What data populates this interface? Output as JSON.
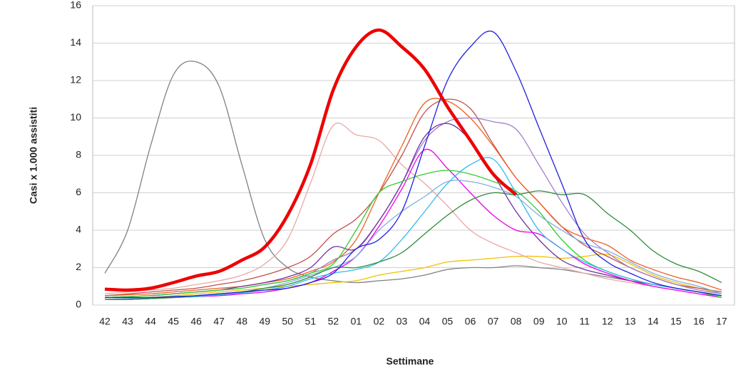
{
  "chart_data": {
    "type": "line",
    "xlabel": "Settimane",
    "ylabel": "Casi x 1.000 assistiti",
    "categories": [
      "42",
      "43",
      "44",
      "45",
      "46",
      "47",
      "48",
      "49",
      "50",
      "51",
      "52",
      "01",
      "02",
      "03",
      "04",
      "05",
      "06",
      "07",
      "08",
      "09",
      "10",
      "11",
      "12",
      "13",
      "14",
      "15",
      "16",
      "17"
    ],
    "ylim": [
      0,
      16
    ],
    "yticks": [
      0,
      2,
      4,
      6,
      8,
      10,
      12,
      14,
      16
    ],
    "grid": true,
    "series": [
      {
        "color": "#808080",
        "values": [
          1.7,
          4.0,
          8.5,
          12.3,
          13.0,
          11.7,
          7.5,
          3.5,
          2.0,
          1.5,
          1.3,
          1.2,
          1.3,
          1.4,
          1.6,
          1.9,
          2.0,
          2.0,
          2.1,
          2.0,
          1.9,
          1.7,
          1.5,
          1.3,
          1.1,
          0.9,
          0.7,
          0.5
        ]
      },
      {
        "color": "#f0c000",
        "values": [
          0.3,
          0.35,
          0.4,
          0.5,
          0.6,
          0.7,
          0.8,
          0.9,
          1.0,
          1.1,
          1.2,
          1.3,
          1.6,
          1.8,
          2.0,
          2.3,
          2.4,
          2.5,
          2.6,
          2.6,
          2.5,
          2.6,
          2.7,
          2.2,
          1.6,
          1.2,
          0.9,
          0.6
        ]
      },
      {
        "color": "#e8a8a8",
        "values": [
          0.6,
          0.7,
          0.8,
          0.9,
          1.1,
          1.3,
          1.6,
          2.2,
          3.5,
          6.5,
          9.6,
          9.1,
          8.8,
          7.5,
          6.5,
          5.3,
          4.0,
          3.3,
          2.8,
          2.3,
          2.0,
          1.7,
          1.4,
          1.2,
          1.0,
          0.8,
          0.6,
          0.5
        ]
      },
      {
        "color": "#c0504d",
        "values": [
          0.5,
          0.6,
          0.7,
          0.8,
          0.9,
          1.1,
          1.3,
          1.6,
          2.0,
          2.6,
          3.8,
          4.6,
          6.0,
          8.0,
          10.3,
          11.0,
          10.5,
          8.6,
          6.8,
          5.5,
          4.2,
          3.2,
          2.6,
          2.0,
          1.5,
          1.1,
          0.9,
          0.7
        ]
      },
      {
        "color": "#f06020",
        "values": [
          0.5,
          0.55,
          0.6,
          0.7,
          0.8,
          0.9,
          1.0,
          1.2,
          1.4,
          1.8,
          2.3,
          3.5,
          6.0,
          8.5,
          10.8,
          10.9,
          10.0,
          8.5,
          6.8,
          5.5,
          4.2,
          3.6,
          3.2,
          2.4,
          1.9,
          1.5,
          1.2,
          0.8
        ]
      },
      {
        "color": "#a080c8",
        "values": [
          0.4,
          0.45,
          0.5,
          0.6,
          0.7,
          0.8,
          0.9,
          1.1,
          1.3,
          1.7,
          2.4,
          3.0,
          4.5,
          6.5,
          8.8,
          9.8,
          10.0,
          9.8,
          9.4,
          7.5,
          5.5,
          3.8,
          2.8,
          2.0,
          1.5,
          1.1,
          0.8,
          0.6
        ]
      },
      {
        "color": "#7030a0",
        "values": [
          0.4,
          0.45,
          0.5,
          0.6,
          0.7,
          0.8,
          1.0,
          1.2,
          1.5,
          2.0,
          3.1,
          3.0,
          4.5,
          6.5,
          9.0,
          9.7,
          8.8,
          7.0,
          5.0,
          3.5,
          2.4,
          1.9,
          1.6,
          1.3,
          1.1,
          0.9,
          0.7,
          0.5
        ]
      },
      {
        "color": "#ee00ee",
        "values": [
          0.3,
          0.3,
          0.35,
          0.4,
          0.45,
          0.5,
          0.6,
          0.7,
          0.9,
          1.2,
          1.8,
          2.6,
          4.2,
          6.2,
          8.3,
          7.3,
          6.0,
          4.8,
          4.0,
          3.8,
          3.0,
          2.2,
          1.7,
          1.3,
          1.0,
          0.8,
          0.6,
          0.4
        ]
      },
      {
        "color": "#33cc33",
        "values": [
          0.4,
          0.45,
          0.5,
          0.6,
          0.7,
          0.8,
          0.9,
          1.1,
          1.3,
          1.7,
          2.2,
          4.0,
          6.0,
          6.6,
          7.0,
          7.2,
          7.0,
          6.6,
          6.1,
          5.0,
          3.5,
          2.4,
          1.8,
          1.4,
          1.1,
          0.9,
          0.7,
          0.4
        ]
      },
      {
        "color": "#33bbee",
        "values": [
          0.3,
          0.3,
          0.35,
          0.4,
          0.45,
          0.55,
          0.65,
          0.8,
          1.0,
          1.4,
          1.7,
          1.9,
          2.3,
          3.5,
          5.0,
          6.5,
          7.5,
          7.8,
          6.0,
          4.0,
          3.0,
          2.3,
          1.8,
          1.4,
          1.1,
          0.9,
          0.7,
          0.5
        ]
      },
      {
        "color": "#7fb0e0",
        "values": [
          0.3,
          0.35,
          0.4,
          0.45,
          0.5,
          0.6,
          0.7,
          0.9,
          1.2,
          1.6,
          2.0,
          2.6,
          4.0,
          5.0,
          5.8,
          6.6,
          6.6,
          6.3,
          5.8,
          4.8,
          4.0,
          3.3,
          2.9,
          2.3,
          1.7,
          1.3,
          1.0,
          0.6
        ]
      },
      {
        "color": "#2e8b3a",
        "values": [
          0.3,
          0.3,
          0.35,
          0.4,
          0.5,
          0.6,
          0.7,
          0.9,
          1.1,
          1.5,
          2.0,
          2.0,
          2.3,
          2.8,
          3.8,
          4.8,
          5.6,
          6.0,
          5.9,
          6.1,
          5.9,
          5.9,
          4.9,
          4.0,
          2.9,
          2.2,
          1.8,
          1.2
        ]
      },
      {
        "color": "#2020e0",
        "values": [
          0.4,
          0.4,
          0.4,
          0.45,
          0.5,
          0.6,
          0.7,
          0.8,
          0.9,
          1.2,
          1.7,
          3.0,
          3.5,
          5.0,
          8.5,
          12.0,
          13.8,
          14.6,
          12.5,
          9.5,
          6.5,
          3.5,
          2.3,
          1.7,
          1.2,
          0.9,
          0.7,
          0.5
        ]
      },
      {
        "color": "#ee0000",
        "values": [
          0.85,
          0.8,
          0.9,
          1.2,
          1.55,
          1.8,
          2.4,
          3.1,
          4.8,
          7.5,
          11.5,
          13.8,
          14.7,
          13.8,
          12.6,
          10.6,
          8.8,
          7.0,
          5.9,
          null,
          null,
          null,
          null,
          null,
          null,
          null,
          null,
          null
        ]
      }
    ]
  }
}
